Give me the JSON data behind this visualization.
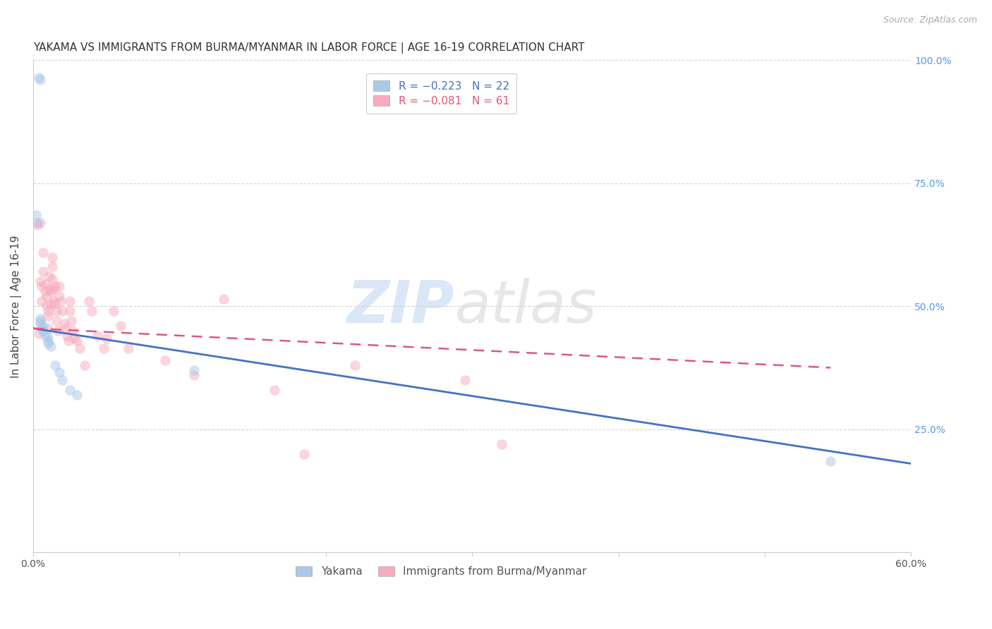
{
  "title": "YAKAMA VS IMMIGRANTS FROM BURMA/MYANMAR IN LABOR FORCE | AGE 16-19 CORRELATION CHART",
  "source": "Source: ZipAtlas.com",
  "ylabel": "In Labor Force | Age 16-19",
  "xlim": [
    0.0,
    0.6
  ],
  "ylim": [
    0.0,
    1.0
  ],
  "xtick_positions": [
    0.0,
    0.1,
    0.2,
    0.3,
    0.4,
    0.5,
    0.6
  ],
  "xticklabels": [
    "0.0%",
    "",
    "",
    "",
    "",
    "",
    "60.0%"
  ],
  "ytick_positions": [
    0.0,
    0.25,
    0.5,
    0.75,
    1.0
  ],
  "right_yticklabels": [
    "",
    "25.0%",
    "50.0%",
    "75.0%",
    "100.0%"
  ],
  "legend_top_labels": [
    "R = −0.223   N = 22",
    "R = −0.081   N = 61"
  ],
  "legend_bottom_labels": [
    "Yakama",
    "Immigrants from Burma/Myanmar"
  ],
  "blue_scatter_x": [
    0.004,
    0.005,
    0.002,
    0.003,
    0.005,
    0.005,
    0.005,
    0.007,
    0.006,
    0.007,
    0.008,
    0.01,
    0.01,
    0.01,
    0.012,
    0.015,
    0.018,
    0.02,
    0.025,
    0.03,
    0.545,
    0.11
  ],
  "blue_scatter_y": [
    0.965,
    0.96,
    0.685,
    0.67,
    0.475,
    0.47,
    0.465,
    0.46,
    0.455,
    0.45,
    0.44,
    0.438,
    0.43,
    0.425,
    0.418,
    0.38,
    0.365,
    0.35,
    0.33,
    0.32,
    0.185,
    0.37
  ],
  "pink_scatter_x": [
    0.003,
    0.004,
    0.005,
    0.005,
    0.006,
    0.006,
    0.007,
    0.007,
    0.008,
    0.008,
    0.009,
    0.009,
    0.01,
    0.01,
    0.01,
    0.011,
    0.011,
    0.012,
    0.012,
    0.013,
    0.013,
    0.013,
    0.014,
    0.014,
    0.015,
    0.015,
    0.016,
    0.016,
    0.017,
    0.018,
    0.018,
    0.019,
    0.02,
    0.021,
    0.022,
    0.023,
    0.024,
    0.025,
    0.025,
    0.026,
    0.027,
    0.028,
    0.03,
    0.032,
    0.035,
    0.038,
    0.04,
    0.044,
    0.048,
    0.05,
    0.055,
    0.06,
    0.065,
    0.09,
    0.11,
    0.13,
    0.165,
    0.185,
    0.22,
    0.295,
    0.32
  ],
  "pink_scatter_y": [
    0.665,
    0.445,
    0.67,
    0.55,
    0.54,
    0.51,
    0.61,
    0.57,
    0.545,
    0.53,
    0.52,
    0.5,
    0.49,
    0.48,
    0.455,
    0.56,
    0.535,
    0.53,
    0.505,
    0.6,
    0.58,
    0.555,
    0.535,
    0.51,
    0.54,
    0.505,
    0.49,
    0.47,
    0.45,
    0.54,
    0.52,
    0.51,
    0.49,
    0.465,
    0.455,
    0.44,
    0.43,
    0.51,
    0.49,
    0.47,
    0.45,
    0.435,
    0.43,
    0.415,
    0.38,
    0.51,
    0.49,
    0.44,
    0.415,
    0.435,
    0.49,
    0.46,
    0.415,
    0.39,
    0.36,
    0.515,
    0.33,
    0.2,
    0.38,
    0.35,
    0.22
  ],
  "blue_line_x": [
    0.0,
    0.6
  ],
  "blue_line_y": [
    0.455,
    0.18
  ],
  "pink_line_x": [
    0.0,
    0.545
  ],
  "pink_line_y": [
    0.455,
    0.375
  ],
  "blue_scatter_color": "#aac8e8",
  "pink_scatter_color": "#f8aabf",
  "blue_line_color": "#4472C4",
  "pink_line_color": "#E05878",
  "marker_size": 110,
  "marker_alpha": 0.5,
  "grid_color": "#d0d0d0",
  "background_color": "#ffffff",
  "title_fontsize": 11,
  "axis_label_fontsize": 11,
  "tick_fontsize": 10,
  "right_tick_color": "#5599ee",
  "legend_top_colors": [
    "#4472C4",
    "#E05878"
  ]
}
